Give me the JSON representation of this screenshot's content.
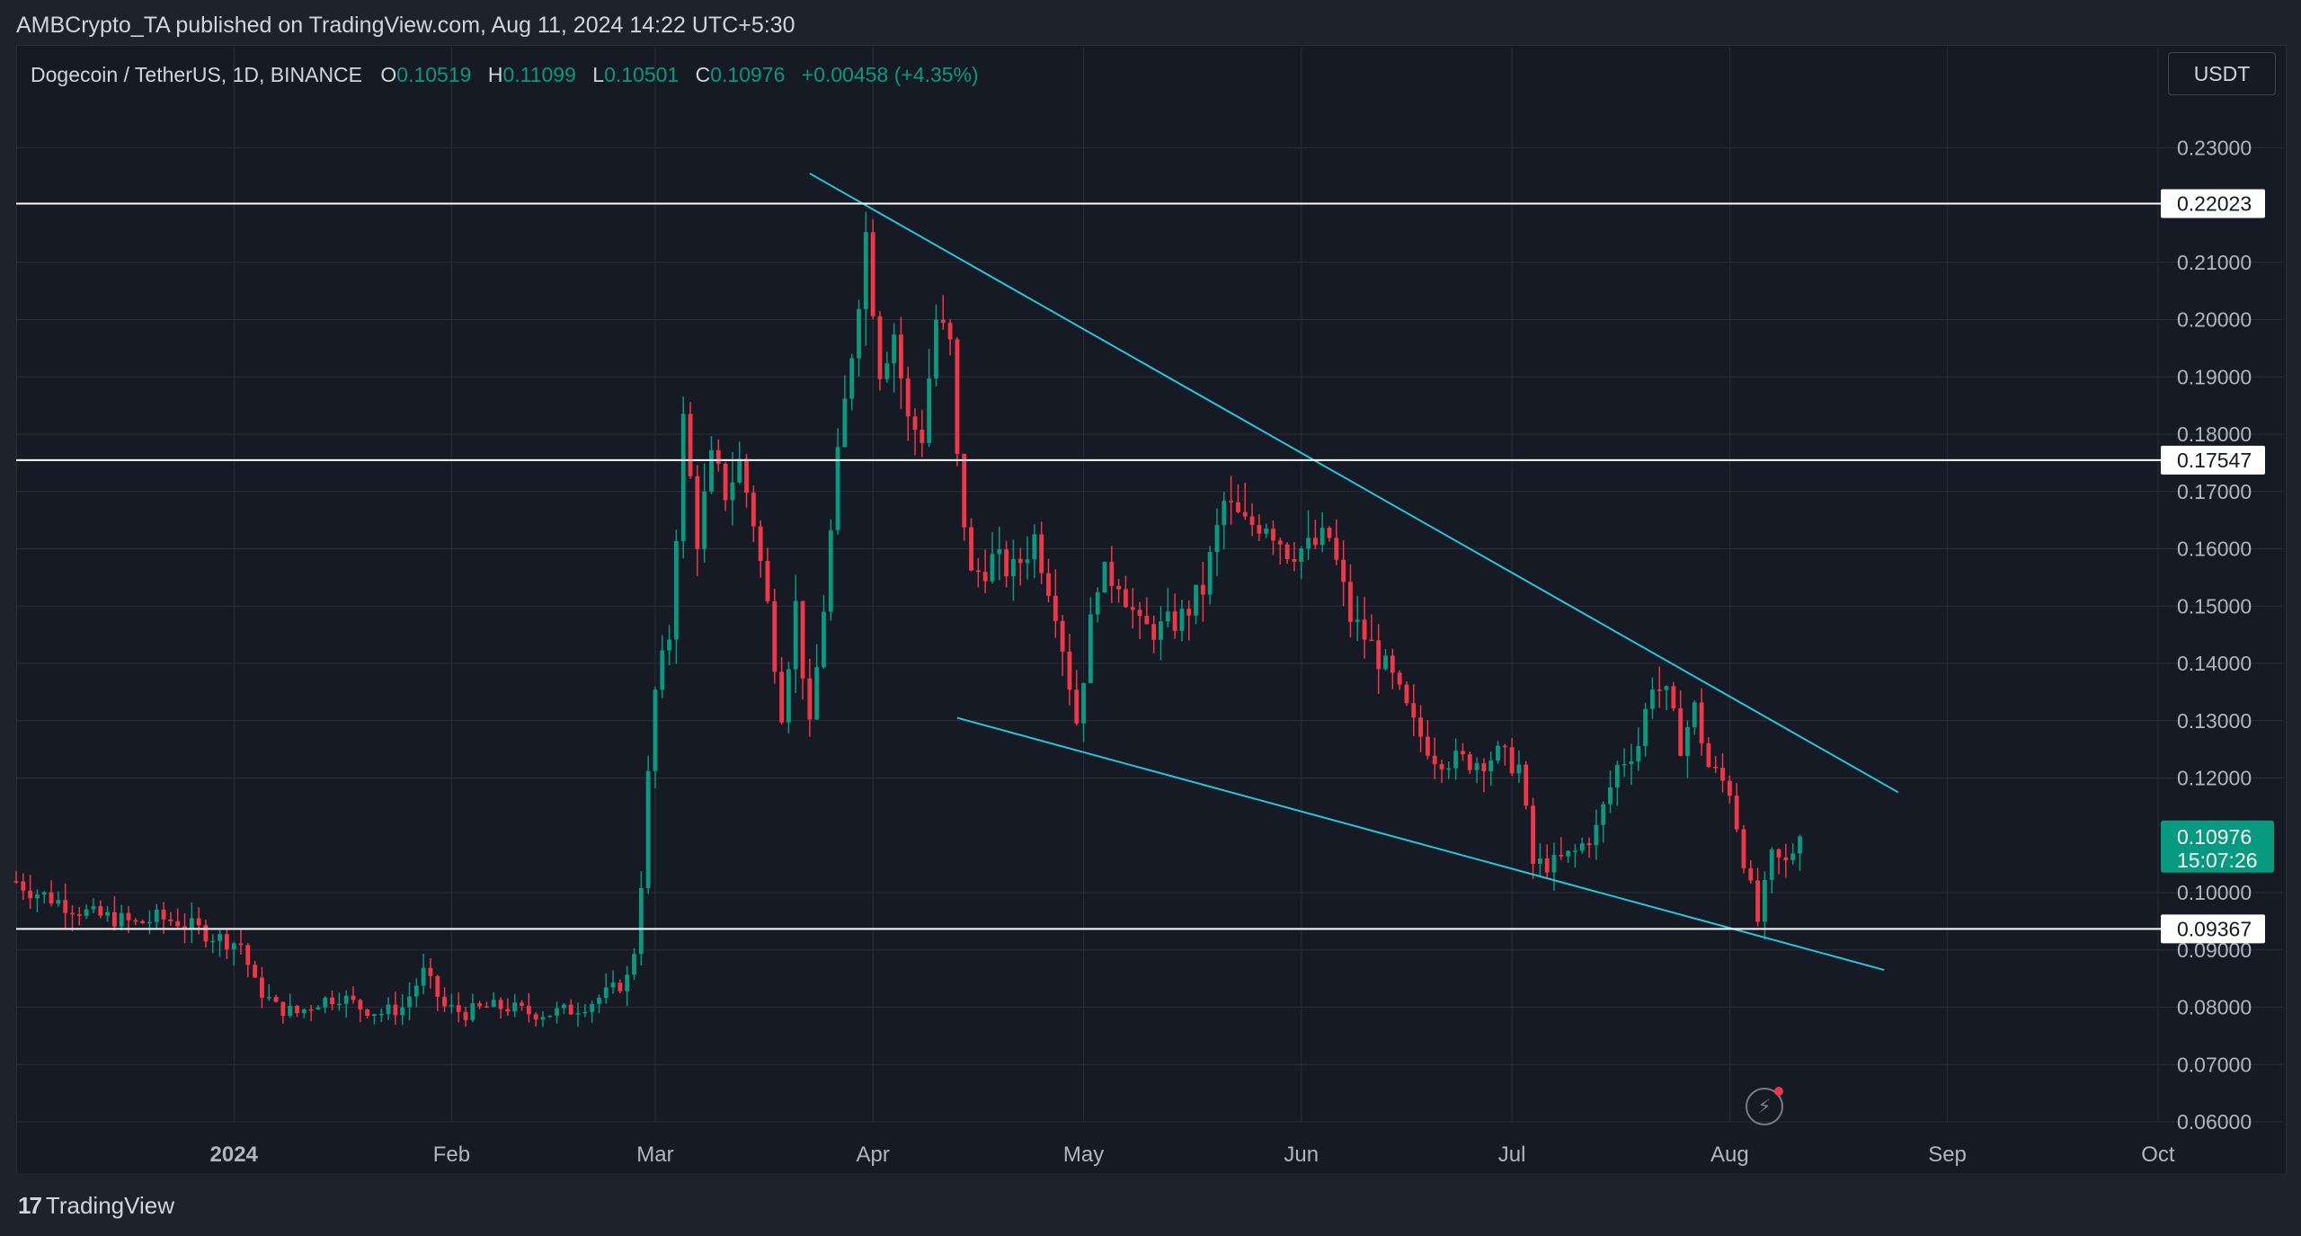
{
  "header": {
    "published_by": "AMBCrypto_TA published on TradingView.com, Aug 11, 2024 14:22 UTC+5:30"
  },
  "legend": {
    "symbol": "Dogecoin / TetherUS, 1D, BINANCE",
    "open_label": "O",
    "open": "0.10519",
    "high_label": "H",
    "high": "0.11099",
    "low_label": "L",
    "low": "0.10501",
    "close_label": "C",
    "close": "0.10976",
    "change": "+0.00458 (+4.35%)"
  },
  "currency_button": "USDT",
  "footer": {
    "brand": "TradingView",
    "brand_mark": "17"
  },
  "colors": {
    "up": "#089981",
    "down": "#f23645",
    "trendline": "#26c6da",
    "level_line": "#ffffff",
    "grid": "#2a2e39",
    "axis_text": "#b2b5be"
  },
  "icons": {
    "snapshot": "lightning-circle-icon"
  },
  "chart_data": {
    "type": "candlestick",
    "symbol": "DOGEUSDT",
    "timeframe": "1D",
    "x_range": [
      "2023-12-01",
      "2024-10-06"
    ],
    "ylim": [
      0.055,
      0.233
    ],
    "x_ticks": [
      {
        "label": "2024",
        "date": "2024-01-01",
        "bold": true
      },
      {
        "label": "Feb",
        "date": "2024-02-01"
      },
      {
        "label": "Mar",
        "date": "2024-03-01"
      },
      {
        "label": "Apr",
        "date": "2024-04-01"
      },
      {
        "label": "May",
        "date": "2024-05-01"
      },
      {
        "label": "Jun",
        "date": "2024-06-01"
      },
      {
        "label": "Jul",
        "date": "2024-07-01"
      },
      {
        "label": "Aug",
        "date": "2024-08-01"
      },
      {
        "label": "Sep",
        "date": "2024-09-01"
      },
      {
        "label": "Oct",
        "date": "2024-10-01"
      }
    ],
    "y_ticks": [
      "0.06000",
      "0.07000",
      "0.08000",
      "0.09000",
      "0.10000",
      "0.12000",
      "0.13000",
      "0.14000",
      "0.15000",
      "0.16000",
      "0.17000",
      "0.18000",
      "0.19000",
      "0.20000",
      "0.21000",
      "0.23000"
    ],
    "horizontal_levels": [
      {
        "value": 0.22023,
        "label": "0.22023"
      },
      {
        "value": 0.17547,
        "label": "0.17547"
      },
      {
        "value": 0.09367,
        "label": "0.09367"
      }
    ],
    "current_price": {
      "value": 0.10976,
      "label": "0.10976",
      "countdown": "15:07:26"
    },
    "trendlines": [
      {
        "name": "upper",
        "from": {
          "date": "2024-03-23",
          "price": 0.2255
        },
        "to": {
          "date": "2024-08-25",
          "price": 0.1175
        }
      },
      {
        "name": "lower",
        "from": {
          "date": "2024-04-13",
          "price": 0.1305
        },
        "to": {
          "date": "2024-08-23",
          "price": 0.0865
        }
      }
    ],
    "closes": [
      [
        "2023-12-01",
        0.102
      ],
      [
        "2023-12-03",
        0.1005
      ],
      [
        "2023-12-06",
        0.099
      ],
      [
        "2023-12-09",
        0.0975
      ],
      [
        "2023-12-12",
        0.096
      ],
      [
        "2023-12-15",
        0.0955
      ],
      [
        "2023-12-18",
        0.0945
      ],
      [
        "2023-12-21",
        0.0955
      ],
      [
        "2023-12-24",
        0.095
      ],
      [
        "2023-12-27",
        0.0935
      ],
      [
        "2023-12-30",
        0.092
      ],
      [
        "2024-01-02",
        0.091
      ],
      [
        "2024-01-04",
        0.084
      ],
      [
        "2024-01-07",
        0.08
      ],
      [
        "2024-01-10",
        0.079
      ],
      [
        "2024-01-13",
        0.081
      ],
      [
        "2024-01-16",
        0.082
      ],
      [
        "2024-01-19",
        0.08
      ],
      [
        "2024-01-22",
        0.079
      ],
      [
        "2024-01-25",
        0.08
      ],
      [
        "2024-01-28",
        0.086
      ],
      [
        "2024-01-31",
        0.08
      ],
      [
        "2024-02-03",
        0.079
      ],
      [
        "2024-02-06",
        0.08
      ],
      [
        "2024-02-09",
        0.08
      ],
      [
        "2024-02-12",
        0.079
      ],
      [
        "2024-02-15",
        0.079
      ],
      [
        "2024-02-18",
        0.0795
      ],
      [
        "2024-02-21",
        0.081
      ],
      [
        "2024-02-24",
        0.083
      ],
      [
        "2024-02-26",
        0.085
      ],
      [
        "2024-02-27",
        0.09
      ],
      [
        "2024-02-28",
        0.102
      ],
      [
        "2024-02-29",
        0.12
      ],
      [
        "2024-03-01",
        0.135
      ],
      [
        "2024-03-03",
        0.145
      ],
      [
        "2024-03-05",
        0.182
      ],
      [
        "2024-03-07",
        0.162
      ],
      [
        "2024-03-09",
        0.175
      ],
      [
        "2024-03-11",
        0.17
      ],
      [
        "2024-03-13",
        0.175
      ],
      [
        "2024-03-15",
        0.165
      ],
      [
        "2024-03-17",
        0.15
      ],
      [
        "2024-03-19",
        0.132
      ],
      [
        "2024-03-21",
        0.15
      ],
      [
        "2024-03-23",
        0.128
      ],
      [
        "2024-03-25",
        0.15
      ],
      [
        "2024-03-27",
        0.175
      ],
      [
        "2024-03-29",
        0.195
      ],
      [
        "2024-03-31",
        0.215
      ],
      [
        "2024-04-02",
        0.192
      ],
      [
        "2024-04-04",
        0.198
      ],
      [
        "2024-04-06",
        0.182
      ],
      [
        "2024-04-08",
        0.18
      ],
      [
        "2024-04-10",
        0.2
      ],
      [
        "2024-04-12",
        0.195
      ],
      [
        "2024-04-13",
        0.175
      ],
      [
        "2024-04-15",
        0.155
      ],
      [
        "2024-04-18",
        0.158
      ],
      [
        "2024-04-21",
        0.156
      ],
      [
        "2024-04-24",
        0.162
      ],
      [
        "2024-04-27",
        0.15
      ],
      [
        "2024-04-30",
        0.13
      ],
      [
        "2024-05-03",
        0.155
      ],
      [
        "2024-05-06",
        0.155
      ],
      [
        "2024-05-09",
        0.146
      ],
      [
        "2024-05-12",
        0.146
      ],
      [
        "2024-05-15",
        0.148
      ],
      [
        "2024-05-18",
        0.153
      ],
      [
        "2024-05-21",
        0.168
      ],
      [
        "2024-05-24",
        0.164
      ],
      [
        "2024-05-27",
        0.165
      ],
      [
        "2024-05-30",
        0.16
      ],
      [
        "2024-06-02",
        0.16
      ],
      [
        "2024-06-05",
        0.162
      ],
      [
        "2024-06-08",
        0.148
      ],
      [
        "2024-06-11",
        0.143
      ],
      [
        "2024-06-14",
        0.137
      ],
      [
        "2024-06-17",
        0.129
      ],
      [
        "2024-06-20",
        0.124
      ],
      [
        "2024-06-23",
        0.123
      ],
      [
        "2024-06-26",
        0.123
      ],
      [
        "2024-06-29",
        0.124
      ],
      [
        "2024-07-02",
        0.122
      ],
      [
        "2024-07-04",
        0.105
      ],
      [
        "2024-07-07",
        0.105
      ],
      [
        "2024-07-10",
        0.107
      ],
      [
        "2024-07-13",
        0.111
      ],
      [
        "2024-07-16",
        0.122
      ],
      [
        "2024-07-19",
        0.126
      ],
      [
        "2024-07-21",
        0.137
      ],
      [
        "2024-07-23",
        0.134
      ],
      [
        "2024-07-25",
        0.126
      ],
      [
        "2024-07-27",
        0.132
      ],
      [
        "2024-07-29",
        0.122
      ],
      [
        "2024-08-01",
        0.118
      ],
      [
        "2024-08-03",
        0.106
      ],
      [
        "2024-08-05",
        0.095
      ],
      [
        "2024-08-07",
        0.106
      ],
      [
        "2024-08-09",
        0.105
      ],
      [
        "2024-08-11",
        0.1098
      ]
    ]
  }
}
